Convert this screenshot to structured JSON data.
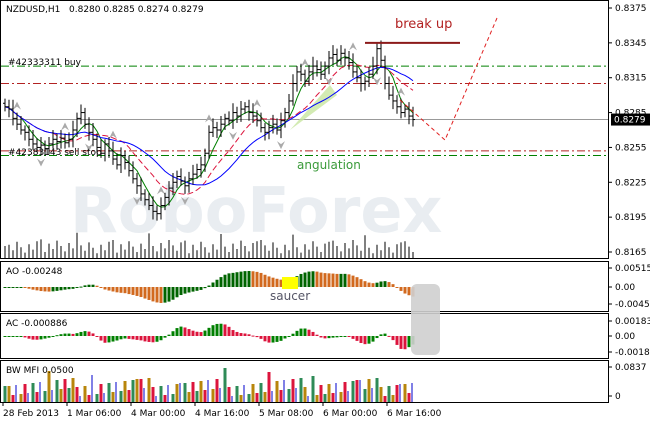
{
  "header": {
    "symbol": "NZDUSD,H1",
    "ohlc": "0.8280 0.8285 0.8274 0.8279"
  },
  "orders": {
    "buy_label": "#42333311 buy",
    "buy_price": 0.8325,
    "sell_stop_label": "#42383143 sell stop",
    "sell_stop_price": 0.8248,
    "red_levels": [
      0.831,
      0.8252
    ]
  },
  "annotations": {
    "break_up": "break up",
    "break_up_price": 0.8345,
    "angulation": "angulation",
    "saucer": "saucer"
  },
  "watermark": "RoboForex",
  "current_price": "0.8279",
  "colors": {
    "buy": "#008000",
    "sell": "#b22222",
    "ma_fast": "#008000",
    "ma_mid": "#dc143c",
    "ma_slow": "#0000ff",
    "ao_up": "#006400",
    "ao_down": "#d2691e",
    "ac_up": "#008000",
    "ac_down": "#dc143c",
    "mfi_green": "#2e8b57",
    "mfi_brown": "#b8860b",
    "mfi_red": "#dc143c",
    "mfi_blue": "#0000cd"
  },
  "panels": {
    "ao_label": "AO -0.00248",
    "ac_label": "AC -0.000886",
    "mfi_label": "BW MFI 0.0500"
  },
  "chart_data": {
    "type": "ohlc",
    "title": "NZDUSD,H1",
    "price_axis": {
      "ticks": [
        "0.8375",
        "0.8345",
        "0.8315",
        "0.8285",
        "0.8255",
        "0.8225",
        "0.8195",
        "0.8165"
      ],
      "range": [
        0.8165,
        0.8375
      ]
    },
    "ao_axis": {
      "ticks": [
        "0.00515",
        "0.00",
        "-0.0045"
      ]
    },
    "ac_axis": {
      "ticks": [
        "0.001834",
        "0.00",
        "-0.00185"
      ]
    },
    "mfi_axis": {
      "ticks": [
        "0.0837",
        "0"
      ]
    },
    "time_axis": {
      "ticks": [
        "28 Feb 2013",
        "1 Mar 06:00",
        "4 Mar 00:00",
        "4 Mar 16:00",
        "5 Mar 08:00",
        "6 Mar 00:00",
        "6 Mar 16:00"
      ]
    },
    "closes": [
      0.829,
      0.8288,
      0.828,
      0.8275,
      0.827,
      0.8268,
      0.8262,
      0.8258,
      0.8255,
      0.8257,
      0.8254,
      0.8258,
      0.8262,
      0.826,
      0.8263,
      0.8259,
      0.8262,
      0.827,
      0.828,
      0.8285,
      0.8275,
      0.8268,
      0.8262,
      0.8255,
      0.825,
      0.8258,
      0.8252,
      0.8245,
      0.824,
      0.8248,
      0.8242,
      0.8235,
      0.8228,
      0.8222,
      0.8215,
      0.821,
      0.8205,
      0.82,
      0.8198,
      0.8205,
      0.8212,
      0.822,
      0.8225,
      0.823,
      0.8226,
      0.8222,
      0.8228,
      0.8232,
      0.8236,
      0.824,
      0.825,
      0.8268,
      0.8272,
      0.827,
      0.8275,
      0.828,
      0.8278,
      0.8285,
      0.8282,
      0.8288,
      0.829,
      0.8285,
      0.8282,
      0.8278,
      0.8272,
      0.8268,
      0.8272,
      0.8275,
      0.827,
      0.8278,
      0.8285,
      0.8295,
      0.831,
      0.832,
      0.8318,
      0.8312,
      0.832,
      0.8325,
      0.8322,
      0.8318,
      0.8325,
      0.8332,
      0.8335,
      0.833,
      0.8336,
      0.8332,
      0.8328,
      0.832,
      0.8315,
      0.831,
      0.8312,
      0.8318,
      0.8325,
      0.834,
      0.833,
      0.831,
      0.83,
      0.8295,
      0.829,
      0.8285,
      0.8288,
      0.8282,
      0.8279
    ]
  }
}
